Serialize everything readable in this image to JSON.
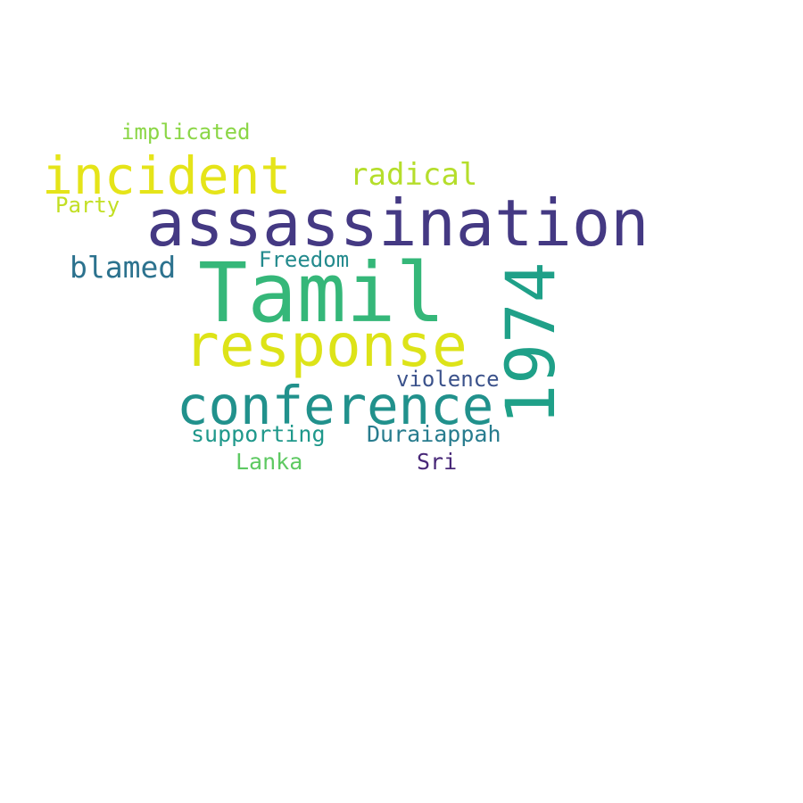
{
  "words": {
    "tamil": {
      "text": "Tamil",
      "color": "#35b779"
    },
    "assassination": {
      "text": "assassination",
      "color": "#443983"
    },
    "response": {
      "text": "response",
      "color": "#dde318"
    },
    "conference": {
      "text": "conference",
      "color": "#21918c"
    },
    "year": {
      "text": "1974",
      "color": "#1fa088"
    },
    "incident": {
      "text": "incident",
      "color": "#e5e419"
    },
    "radical": {
      "text": "radical",
      "color": "#b5de2b"
    },
    "blamed": {
      "text": "blamed",
      "color": "#2c728e"
    },
    "implicated": {
      "text": "implicated",
      "color": "#8bd646"
    },
    "party": {
      "text": "Party",
      "color": "#c2df23"
    },
    "freedom": {
      "text": "Freedom",
      "color": "#238a8d"
    },
    "violence": {
      "text": "violence",
      "color": "#3b528b"
    },
    "supporting": {
      "text": "supporting",
      "color": "#1f988b"
    },
    "duraiappah": {
      "text": "Duraiappah",
      "color": "#287c8e"
    },
    "lanka": {
      "text": "Lanka",
      "color": "#5ec962"
    },
    "sri": {
      "text": "Sri",
      "color": "#482878"
    }
  }
}
